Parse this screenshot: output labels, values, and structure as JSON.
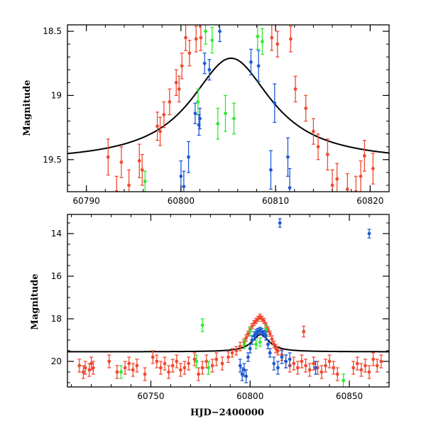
{
  "chart_data": [
    {
      "type": "scatter",
      "panel": "top",
      "title": "",
      "xlabel": "",
      "ylabel": "Magnitude",
      "xlim": [
        60788,
        60822
      ],
      "ylim": [
        19.75,
        18.45
      ],
      "y_inverted": true,
      "xticks": [
        "60790",
        "60800",
        "60810",
        "60820"
      ],
      "xtick_values": [
        60790,
        60800,
        60810,
        60820
      ],
      "yticks": [
        "18.5",
        "19",
        "19.5"
      ],
      "ytick_values": [
        18.5,
        19.0,
        19.5
      ],
      "model_curve": {
        "color": "#000000",
        "baseline": 19.52,
        "amplitude": 0.81,
        "peak_x": 60805.3,
        "width": 5.2
      },
      "series": [
        {
          "color": "#f04a32",
          "points": [
            [
              60792.3,
              19.48,
              0.14
            ],
            [
              60793.2,
              19.75,
              0.12
            ],
            [
              60793.7,
              19.52,
              0.12
            ],
            [
              60794.5,
              19.7,
              0.12
            ],
            [
              60795.6,
              19.51,
              0.13
            ],
            [
              60795.9,
              19.58,
              0.12
            ],
            [
              60797.5,
              19.24,
              0.11
            ],
            [
              60797.8,
              19.28,
              0.11
            ],
            [
              60798.2,
              19.15,
              0.1
            ],
            [
              60798.8,
              19.05,
              0.1
            ],
            [
              60799.5,
              18.9,
              0.1
            ],
            [
              60799.8,
              18.95,
              0.1
            ],
            [
              60800.1,
              18.77,
              0.1
            ],
            [
              60800.5,
              18.55,
              0.1
            ],
            [
              60800.9,
              18.67,
              0.1
            ],
            [
              60801.6,
              18.56,
              0.1
            ],
            [
              60802.1,
              18.55,
              0.1
            ],
            [
              60809.6,
              18.55,
              0.1
            ],
            [
              60810.2,
              18.6,
              0.1
            ],
            [
              60811.6,
              18.56,
              0.1
            ],
            [
              60812.1,
              18.95,
              0.1
            ],
            [
              60813.2,
              19.1,
              0.1
            ],
            [
              60814.0,
              19.28,
              0.1
            ],
            [
              60814.5,
              19.4,
              0.1
            ],
            [
              60815.5,
              19.46,
              0.12
            ],
            [
              60816.0,
              19.7,
              0.12
            ],
            [
              60816.5,
              19.65,
              0.12
            ],
            [
              60817.6,
              19.73,
              0.12
            ],
            [
              60818.5,
              19.75,
              0.12
            ],
            [
              60819.0,
              19.63,
              0.12
            ],
            [
              60819.4,
              19.47,
              0.12
            ],
            [
              60820.3,
              19.57,
              0.12
            ]
          ]
        },
        {
          "color": "#32e832",
          "points": [
            [
              60796.2,
              19.67,
              0.08
            ],
            [
              60801.8,
              19.05,
              0.1
            ],
            [
              60802.6,
              18.5,
              0.1
            ],
            [
              60803.3,
              18.57,
              0.1
            ],
            [
              60803.9,
              19.22,
              0.12
            ],
            [
              60804.7,
              19.14,
              0.14
            ],
            [
              60805.6,
              19.18,
              0.12
            ],
            [
              60808.1,
              18.54,
              0.1
            ],
            [
              60808.6,
              18.58,
              0.1
            ]
          ]
        },
        {
          "color": "#1e5ad2",
          "points": [
            [
              60800.0,
              19.63,
              0.12
            ],
            [
              60800.3,
              19.71,
              0.12
            ],
            [
              60800.8,
              19.48,
              0.12
            ],
            [
              60801.5,
              19.14,
              0.08
            ],
            [
              60801.9,
              19.23,
              0.08
            ],
            [
              60802.0,
              19.18,
              0.08
            ],
            [
              60802.5,
              18.75,
              0.08
            ],
            [
              60803.0,
              18.8,
              0.08
            ],
            [
              60804.1,
              18.5,
              0.08
            ],
            [
              60807.4,
              18.74,
              0.1
            ],
            [
              60808.2,
              18.77,
              0.12
            ],
            [
              60809.5,
              19.58,
              0.15
            ],
            [
              60809.9,
              19.06,
              0.15
            ],
            [
              60811.3,
              19.48,
              0.15
            ],
            [
              60811.5,
              19.72,
              0.15
            ]
          ]
        }
      ]
    },
    {
      "type": "scatter",
      "panel": "bottom",
      "title": "",
      "xlabel": "HJD−2400000",
      "ylabel": "Magnitude",
      "xlim": [
        60708,
        60870
      ],
      "ylim": [
        21.2,
        13.1
      ],
      "y_inverted": true,
      "xticks": [
        "60750",
        "60800",
        "60850"
      ],
      "xtick_values": [
        60750,
        60800,
        60850
      ],
      "yticks": [
        "14",
        "16",
        "18",
        "20"
      ],
      "ytick_values": [
        14,
        16,
        18,
        20
      ],
      "model_curve": {
        "color": "#000000",
        "baseline": 19.55,
        "amplitude": 0.81,
        "peak_x": 60805.3,
        "width": 5.2
      },
      "series": [
        {
          "color": "#f04a32",
          "points": [
            [
              60714,
              20.2,
              0.3
            ],
            [
              60716,
              20.5,
              0.3
            ],
            [
              60717,
              20.3,
              0.3
            ],
            [
              60719,
              20.4,
              0.3
            ],
            [
              60720,
              20.1,
              0.3
            ],
            [
              60721,
              20.3,
              0.3
            ],
            [
              60729,
              20.0,
              0.3
            ],
            [
              60733,
              20.5,
              0.3
            ],
            [
              60737,
              20.3,
              0.3
            ],
            [
              60739,
              20.1,
              0.3
            ],
            [
              60741,
              20.4,
              0.3
            ],
            [
              60743,
              20.2,
              0.3
            ],
            [
              60747,
              20.6,
              0.3
            ],
            [
              60751,
              19.8,
              0.3
            ],
            [
              60753,
              20.0,
              0.3
            ],
            [
              60755,
              20.3,
              0.3
            ],
            [
              60757,
              20.1,
              0.3
            ],
            [
              60759,
              20.5,
              0.3
            ],
            [
              60761,
              20.2,
              0.3
            ],
            [
              60763,
              20.0,
              0.3
            ],
            [
              60765,
              20.4,
              0.3
            ],
            [
              60767,
              20.3,
              0.3
            ],
            [
              60769,
              20.1,
              0.3
            ],
            [
              60772,
              19.9,
              0.3
            ],
            [
              60774,
              20.6,
              0.3
            ],
            [
              60776,
              20.3,
              0.3
            ],
            [
              60778,
              20.0,
              0.3
            ],
            [
              60781,
              20.2,
              0.3
            ],
            [
              60783,
              19.9,
              0.3
            ],
            [
              60786,
              20.1,
              0.3
            ],
            [
              60789,
              19.8,
              0.25
            ],
            [
              60791,
              19.6,
              0.2
            ],
            [
              60793,
              19.5,
              0.2
            ],
            [
              60795,
              19.3,
              0.2
            ],
            [
              60797,
              19.1,
              0.15
            ],
            [
              60798,
              18.9,
              0.15
            ],
            [
              60799,
              18.7,
              0.12
            ],
            [
              60800,
              18.5,
              0.12
            ],
            [
              60801,
              18.35,
              0.12
            ],
            [
              60802,
              18.2,
              0.12
            ],
            [
              60803,
              18.1,
              0.12
            ],
            [
              60804,
              18.0,
              0.12
            ],
            [
              60805,
              17.9,
              0.12
            ],
            [
              60806,
              18.0,
              0.12
            ],
            [
              60807,
              18.1,
              0.12
            ],
            [
              60808,
              18.3,
              0.12
            ],
            [
              60809,
              18.5,
              0.12
            ],
            [
              60810,
              18.7,
              0.12
            ],
            [
              60811,
              18.95,
              0.15
            ],
            [
              60812,
              19.2,
              0.15
            ],
            [
              60813,
              19.4,
              0.2
            ],
            [
              60814,
              19.5,
              0.2
            ],
            [
              60816,
              19.7,
              0.25
            ],
            [
              60818,
              20.0,
              0.3
            ],
            [
              60820,
              20.2,
              0.3
            ],
            [
              60822,
              20.1,
              0.3
            ],
            [
              60824,
              20.3,
              0.3
            ],
            [
              60826,
              20.0,
              0.3
            ],
            [
              60827,
              18.6,
              0.25
            ],
            [
              60828,
              20.2,
              0.3
            ],
            [
              60830,
              20.4,
              0.3
            ],
            [
              60832,
              20.1,
              0.3
            ],
            [
              60834,
              20.3,
              0.3
            ],
            [
              60836,
              20.5,
              0.3
            ],
            [
              60838,
              20.2,
              0.3
            ],
            [
              60840,
              20.0,
              0.3
            ],
            [
              60842,
              20.3,
              0.3
            ],
            [
              60844,
              20.6,
              0.3
            ],
            [
              60852,
              20.3,
              0.3
            ],
            [
              60854,
              20.1,
              0.3
            ],
            [
              60856,
              20.4,
              0.3
            ],
            [
              60858,
              20.2,
              0.3
            ],
            [
              60860,
              20.5,
              0.3
            ],
            [
              60862,
              19.9,
              0.3
            ],
            [
              60864,
              20.2,
              0.3
            ],
            [
              60866,
              20.0,
              0.3
            ]
          ]
        },
        {
          "color": "#32e832",
          "points": [
            [
              60735,
              20.5,
              0.3
            ],
            [
              60773,
              20.0,
              0.3
            ],
            [
              60776,
              18.3,
              0.3
            ],
            [
              60779,
              20.3,
              0.3
            ],
            [
              60797,
              19.2,
              0.2
            ],
            [
              60800,
              18.6,
              0.2
            ],
            [
              60803,
              19.2,
              0.2
            ],
            [
              60805,
              19.1,
              0.2
            ],
            [
              60808,
              18.5,
              0.2
            ],
            [
              60847,
              20.9,
              0.3
            ]
          ]
        },
        {
          "color": "#1e5ad2",
          "points": [
            [
              60795,
              20.2,
              0.3
            ],
            [
              60796,
              20.6,
              0.3
            ],
            [
              60797,
              20.4,
              0.3
            ],
            [
              60798,
              20.7,
              0.3
            ],
            [
              60799,
              19.8,
              0.2
            ],
            [
              60800,
              19.4,
              0.2
            ],
            [
              60801,
              19.0,
              0.2
            ],
            [
              60802,
              18.8,
              0.2
            ],
            [
              60803,
              18.7,
              0.2
            ],
            [
              60804,
              18.6,
              0.15
            ],
            [
              60805,
              18.55,
              0.15
            ],
            [
              60806,
              18.6,
              0.15
            ],
            [
              60807,
              18.7,
              0.15
            ],
            [
              60808,
              18.8,
              0.2
            ],
            [
              60809,
              19.2,
              0.2
            ],
            [
              60810,
              19.6,
              0.2
            ],
            [
              60812,
              20.1,
              0.3
            ],
            [
              60814,
              20.3,
              0.3
            ],
            [
              60815,
              13.5,
              0.2
            ],
            [
              60816,
              19.8,
              0.3
            ],
            [
              60818,
              20.0,
              0.3
            ],
            [
              60820,
              19.9,
              0.3
            ],
            [
              60833,
              20.3,
              0.3
            ],
            [
              60860,
              14.0,
              0.2
            ]
          ]
        }
      ]
    }
  ]
}
